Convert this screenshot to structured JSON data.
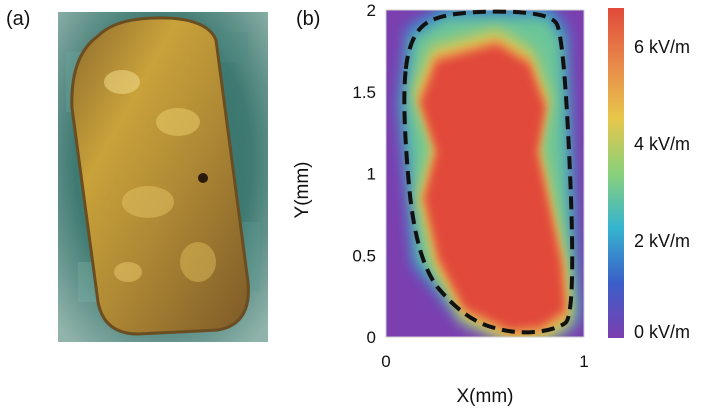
{
  "figure": {
    "panel_a_label": "(a)",
    "panel_b_label": "(b)"
  },
  "panel_a": {
    "content": "photo",
    "colors": {
      "sample": "#b8912f",
      "background": "#3f7a72"
    }
  },
  "chart_data": {
    "type": "heatmap",
    "title": "",
    "xlabel": "X(mm)",
    "ylabel": "Y(mm)",
    "xlim": [
      0,
      1
    ],
    "ylim": [
      0,
      2
    ],
    "x_ticks": [
      "0",
      "1"
    ],
    "y_ticks": [
      "0",
      "0.5",
      "1",
      "1.5",
      "2"
    ],
    "grid": false,
    "colorbar": {
      "ticks": [
        "0 kV/m",
        "2 kV/m",
        "4 kV/m",
        "6 kV/m"
      ],
      "tick_values": [
        0,
        2,
        4,
        6
      ],
      "range": [
        0,
        6.8
      ],
      "colors": [
        "#7b3fb0",
        "#3b5ec9",
        "#35b4cf",
        "#8ad07a",
        "#e8c64a",
        "#e8874a",
        "#e14a3a"
      ]
    },
    "boundary": {
      "style": "dashed",
      "color": "#111111",
      "vertices": [
        [
          0.12,
          1.86
        ],
        [
          0.3,
          1.99
        ],
        [
          0.82,
          1.99
        ],
        [
          0.9,
          1.85
        ],
        [
          0.96,
          0.13
        ],
        [
          0.85,
          0.04
        ],
        [
          0.63,
          0.02
        ],
        [
          0.39,
          0.12
        ],
        [
          0.15,
          0.46
        ],
        [
          0.08,
          1.42
        ]
      ]
    },
    "high_field_region": {
      "value": 6.8,
      "vertices": [
        [
          0.26,
          1.68
        ],
        [
          0.56,
          1.78
        ],
        [
          0.72,
          1.66
        ],
        [
          0.8,
          1.4
        ],
        [
          0.76,
          1.13
        ],
        [
          0.88,
          0.46
        ],
        [
          0.9,
          0.17
        ],
        [
          0.78,
          0.07
        ],
        [
          0.63,
          0.05
        ],
        [
          0.4,
          0.18
        ],
        [
          0.27,
          0.48
        ],
        [
          0.2,
          0.85
        ],
        [
          0.26,
          1.13
        ],
        [
          0.18,
          1.43
        ]
      ]
    },
    "background_value": 0
  }
}
